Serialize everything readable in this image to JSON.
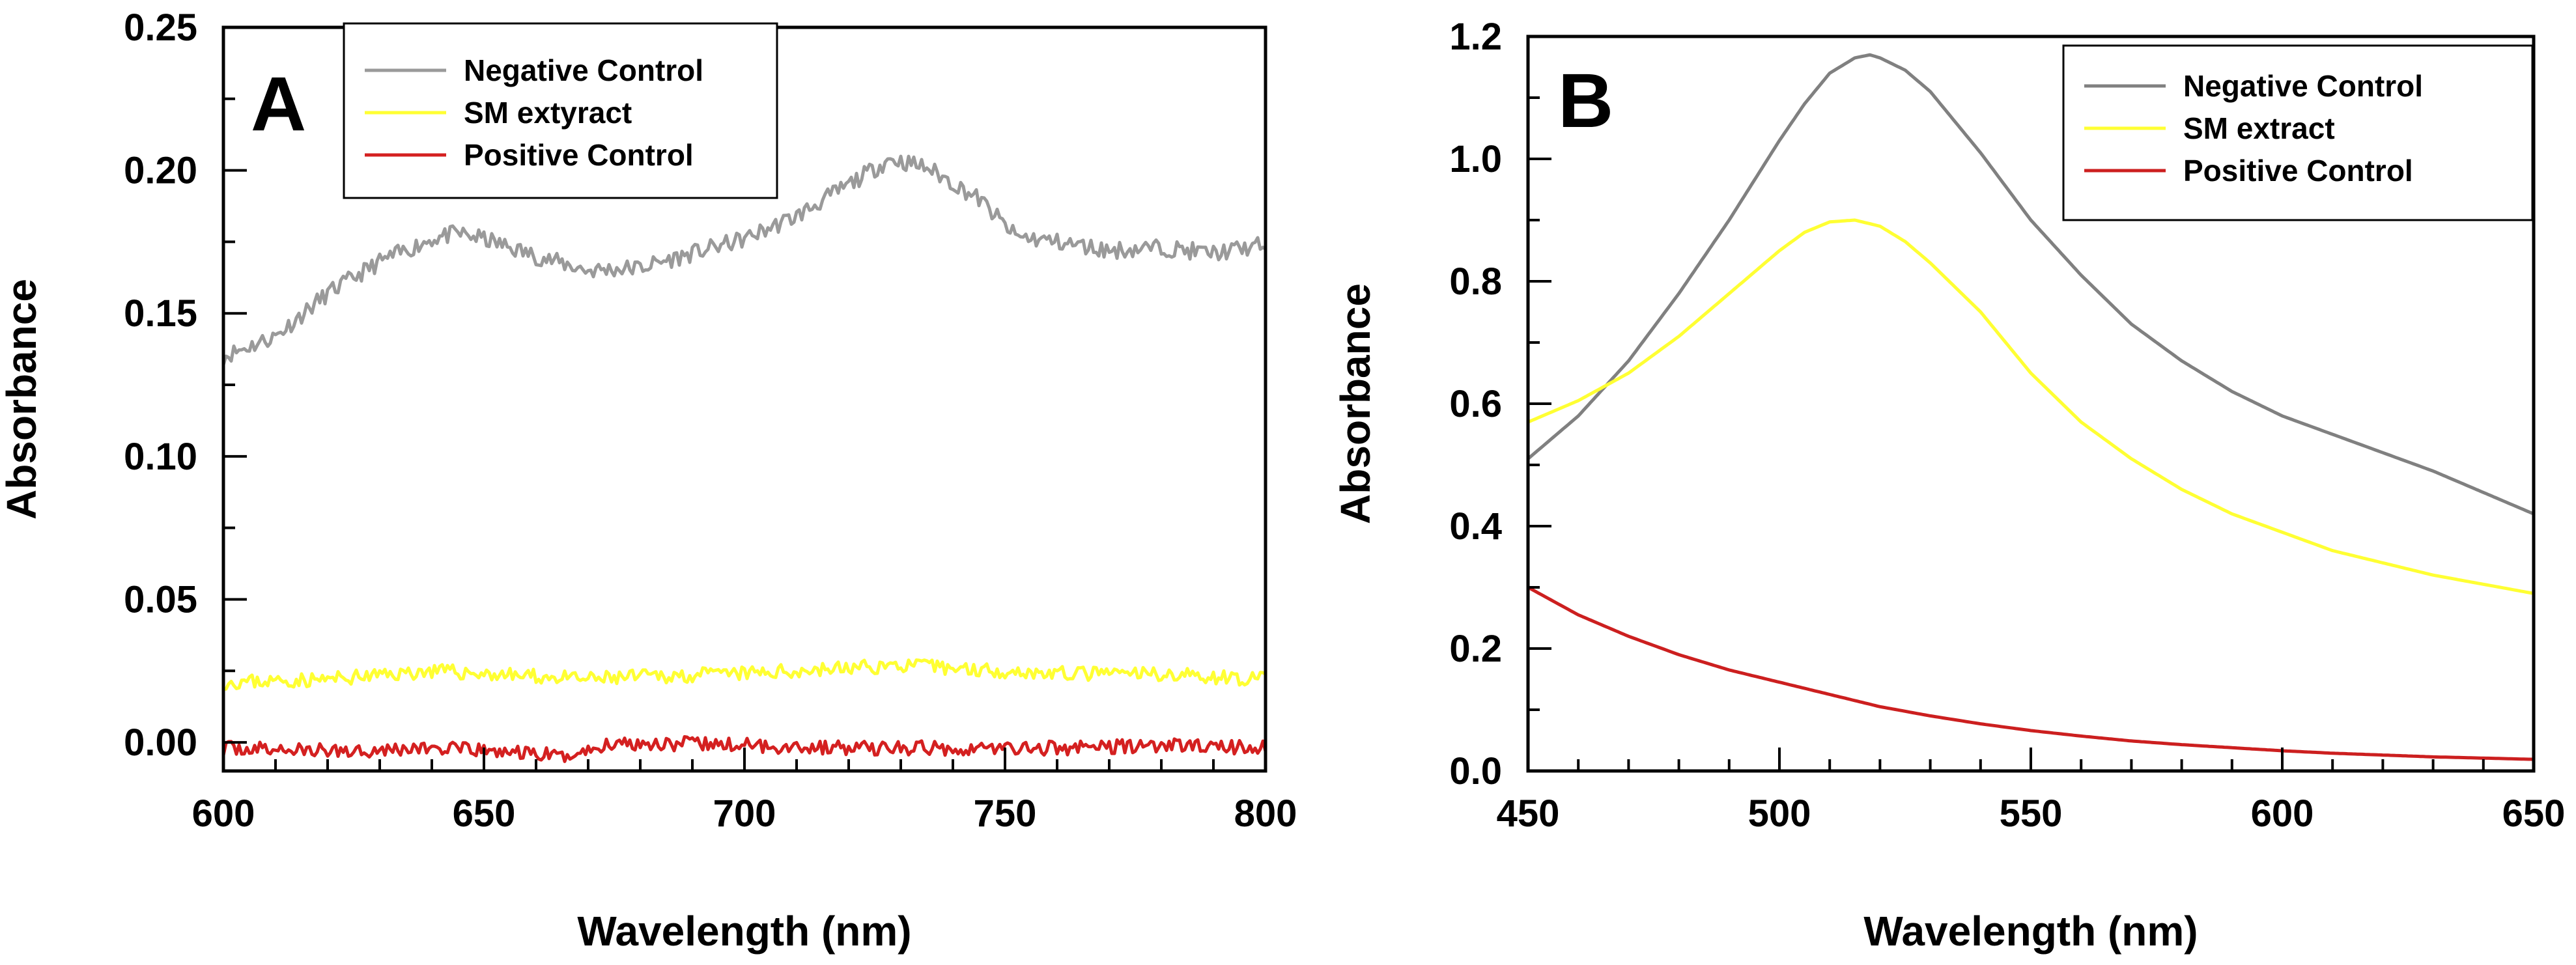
{
  "chart_data": [
    {
      "type": "line",
      "panel": "A",
      "xlabel": "Wavelength (nm)",
      "ylabel": "Absorbance",
      "xlim": [
        600,
        800
      ],
      "ylim": [
        -0.01,
        0.25
      ],
      "xticks": [
        600,
        650,
        700,
        750,
        800
      ],
      "xtick_labels": [
        "600",
        "650",
        "700",
        "750",
        "800"
      ],
      "yticks": [
        0.0,
        0.05,
        0.1,
        0.15,
        0.2,
        0.25
      ],
      "ytick_labels": [
        "0.00",
        "0.05",
        "0.10",
        "0.15",
        "0.20",
        "0.25"
      ],
      "legend_position": "top-center",
      "series": [
        {
          "name": "Negative Control",
          "color": "#9a9a9a",
          "noise": 0.003,
          "seed": 11,
          "x": [
            600,
            610,
            620,
            630,
            640,
            645,
            650,
            660,
            670,
            680,
            690,
            700,
            710,
            720,
            728,
            735,
            745,
            752,
            760,
            770,
            780,
            790,
            800
          ],
          "y": [
            0.135,
            0.142,
            0.157,
            0.168,
            0.176,
            0.178,
            0.176,
            0.17,
            0.165,
            0.166,
            0.171,
            0.176,
            0.184,
            0.195,
            0.204,
            0.201,
            0.19,
            0.177,
            0.175,
            0.172,
            0.173,
            0.171,
            0.174
          ]
        },
        {
          "name": "SM extyract",
          "color": "#ffff33",
          "noise": 0.0025,
          "seed": 23,
          "x": [
            600,
            620,
            640,
            650,
            660,
            670,
            680,
            700,
            720,
            730,
            740,
            760,
            780,
            800
          ],
          "y": [
            0.021,
            0.022,
            0.025,
            0.024,
            0.023,
            0.022,
            0.023,
            0.024,
            0.026,
            0.027,
            0.026,
            0.024,
            0.024,
            0.022
          ]
        },
        {
          "name": "Positive Control",
          "color": "#d42020",
          "noise": 0.0025,
          "seed": 37,
          "x": [
            600,
            620,
            640,
            660,
            665,
            670,
            675,
            700,
            720,
            740,
            760,
            780,
            800
          ],
          "y": [
            -0.002,
            -0.003,
            -0.002,
            -0.004,
            -0.005,
            -0.003,
            0.0,
            -0.001,
            -0.002,
            -0.002,
            -0.002,
            -0.001,
            -0.002
          ]
        }
      ]
    },
    {
      "type": "line",
      "panel": "B",
      "xlabel": "Wavelength (nm)",
      "ylabel": "Absorbance",
      "xlim": [
        450,
        650
      ],
      "ylim": [
        0.0,
        1.2
      ],
      "xticks": [
        450,
        500,
        550,
        600,
        650
      ],
      "xtick_labels": [
        "450",
        "500",
        "550",
        "600",
        "650"
      ],
      "yticks": [
        0.0,
        0.2,
        0.4,
        0.6,
        0.8,
        1.0,
        1.2
      ],
      "ytick_labels": [
        "0.0",
        "0.2",
        "0.4",
        "0.6",
        "0.8",
        "1.0",
        "1.2"
      ],
      "legend_position": "top-right",
      "series": [
        {
          "name": "Negative Control",
          "color": "#808080",
          "noise": 0,
          "seed": 0,
          "x": [
            450,
            460,
            470,
            480,
            490,
            500,
            505,
            510,
            515,
            518,
            520,
            525,
            530,
            540,
            550,
            560,
            570,
            580,
            590,
            600,
            610,
            620,
            630,
            640,
            650
          ],
          "y": [
            0.51,
            0.58,
            0.67,
            0.78,
            0.9,
            1.03,
            1.09,
            1.14,
            1.165,
            1.17,
            1.165,
            1.145,
            1.11,
            1.01,
            0.9,
            0.81,
            0.73,
            0.67,
            0.62,
            0.58,
            0.55,
            0.52,
            0.49,
            0.455,
            0.42
          ]
        },
        {
          "name": "SM extract",
          "color": "#ffff33",
          "noise": 0,
          "seed": 0,
          "x": [
            450,
            460,
            470,
            480,
            490,
            500,
            505,
            510,
            515,
            520,
            525,
            530,
            540,
            550,
            560,
            570,
            580,
            590,
            600,
            610,
            620,
            630,
            640,
            650
          ],
          "y": [
            0.57,
            0.605,
            0.65,
            0.71,
            0.78,
            0.85,
            0.88,
            0.897,
            0.9,
            0.89,
            0.865,
            0.83,
            0.75,
            0.65,
            0.57,
            0.51,
            0.46,
            0.42,
            0.39,
            0.36,
            0.34,
            0.32,
            0.305,
            0.29
          ]
        },
        {
          "name": "Positive Control",
          "color": "#cc1f1f",
          "noise": 0,
          "seed": 0,
          "x": [
            450,
            460,
            470,
            480,
            490,
            500,
            510,
            520,
            530,
            540,
            550,
            560,
            570,
            580,
            590,
            600,
            610,
            620,
            630,
            640,
            650
          ],
          "y": [
            0.3,
            0.255,
            0.22,
            0.19,
            0.165,
            0.145,
            0.125,
            0.105,
            0.09,
            0.077,
            0.066,
            0.057,
            0.049,
            0.043,
            0.038,
            0.033,
            0.029,
            0.026,
            0.023,
            0.021,
            0.019
          ]
        }
      ]
    }
  ]
}
